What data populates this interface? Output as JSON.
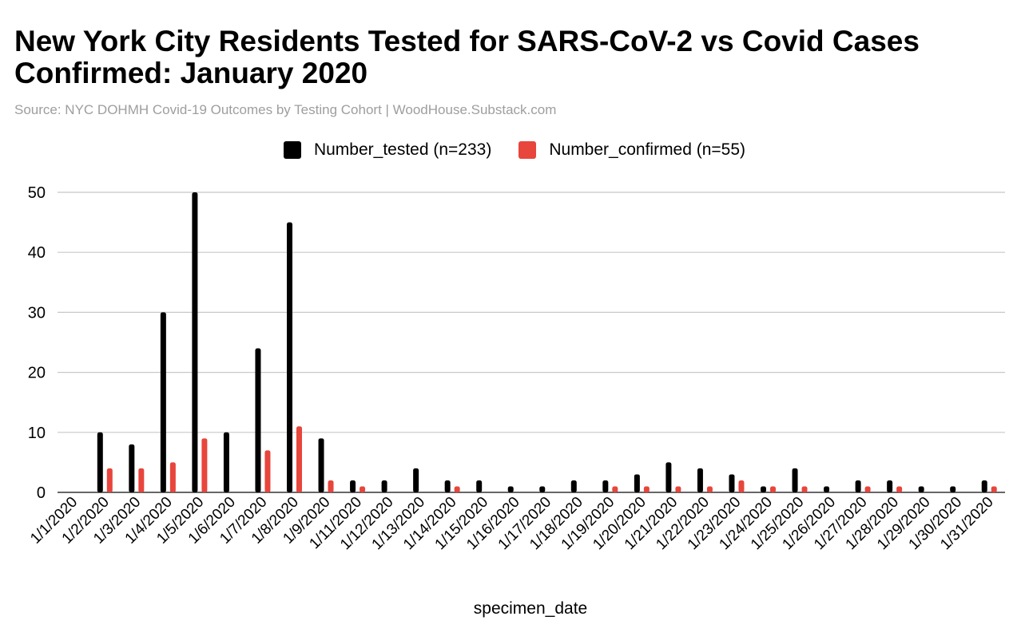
{
  "chart_data": {
    "type": "bar",
    "title": "New York City Residents Tested for SARS-CoV-2 vs Covid Cases Confirmed: January 2020",
    "subtitle": "Source: NYC DOHMH Covid-19 Outcomes by Testing Cohort | WoodHouse.Substack.com",
    "xlabel": "specimen_date",
    "ylabel": "",
    "ylim": [
      0,
      50
    ],
    "yticks": [
      0,
      10,
      20,
      30,
      40,
      50
    ],
    "grid": true,
    "legend_position": "top-center",
    "categories": [
      "1/1/2020",
      "1/2/2020",
      "1/3/2020",
      "1/4/2020",
      "1/5/2020",
      "1/6/2020",
      "1/7/2020",
      "1/8/2020",
      "1/9/2020",
      "1/11/2020",
      "1/12/2020",
      "1/13/2020",
      "1/14/2020",
      "1/15/2020",
      "1/16/2020",
      "1/17/2020",
      "1/18/2020",
      "1/19/2020",
      "1/20/2020",
      "1/21/2020",
      "1/22/2020",
      "1/23/2020",
      "1/24/2020",
      "1/25/2020",
      "1/26/2020",
      "1/27/2020",
      "1/28/2020",
      "1/29/2020",
      "1/30/2020",
      "1/31/2020"
    ],
    "series": [
      {
        "name": "Number_tested (n=233)",
        "color": "#000000",
        "values": [
          0,
          10,
          8,
          30,
          50,
          10,
          24,
          45,
          9,
          2,
          2,
          4,
          2,
          2,
          1,
          1,
          2,
          2,
          3,
          5,
          4,
          3,
          1,
          4,
          1,
          2,
          2,
          1,
          1,
          2
        ]
      },
      {
        "name": "Number_confirmed (n=55)",
        "color": "#e8453c",
        "values": [
          0,
          4,
          4,
          5,
          9,
          0,
          7,
          11,
          2,
          1,
          0,
          0,
          1,
          0,
          0,
          0,
          0,
          1,
          1,
          1,
          1,
          2,
          1,
          1,
          0,
          1,
          1,
          0,
          0,
          1
        ]
      }
    ]
  }
}
